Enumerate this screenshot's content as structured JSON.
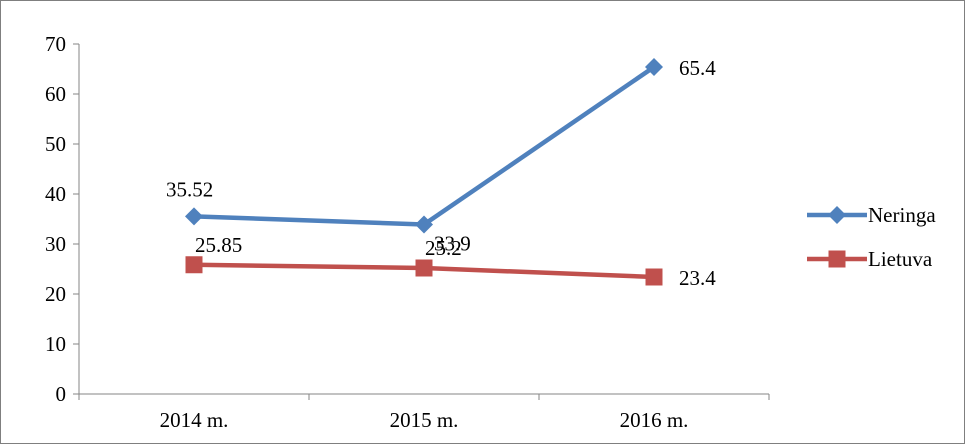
{
  "chart_data": {
    "type": "line",
    "categories": [
      "2014 m.",
      "2015 m.",
      "2016 m."
    ],
    "ylim": [
      0,
      70
    ],
    "yticks": [
      0,
      10,
      20,
      30,
      40,
      50,
      60,
      70
    ],
    "ytick_labels": [
      "0",
      "10",
      "20",
      "30",
      "40",
      "50",
      "60",
      "70"
    ],
    "grid": false,
    "legend_position": "right",
    "series": [
      {
        "name": "Neringa",
        "values": [
          35.52,
          33.9,
          65.4
        ],
        "labels": [
          "35.52",
          "33.9",
          "65.4"
        ],
        "color": "#4f81bd",
        "marker": "diamond"
      },
      {
        "name": "Lietuva",
        "values": [
          25.85,
          25.2,
          23.4
        ],
        "labels": [
          "25.85",
          "25.2",
          "23.4"
        ],
        "color": "#c0504d",
        "marker": "square"
      }
    ]
  }
}
